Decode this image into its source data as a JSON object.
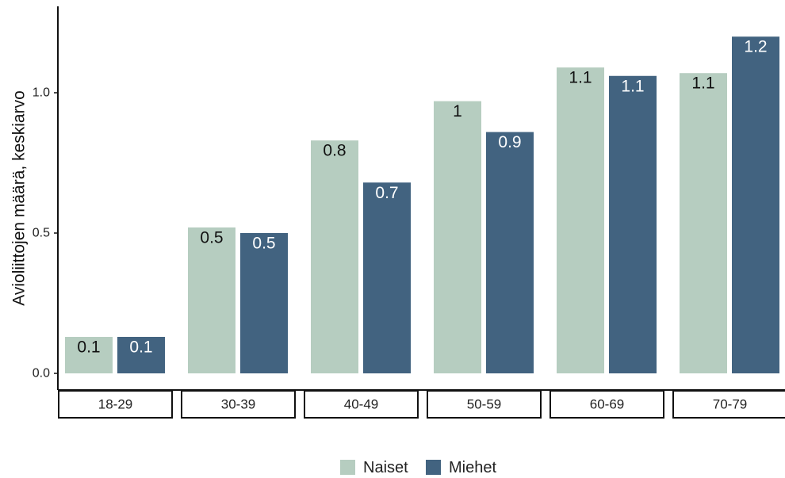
{
  "chart_data": {
    "type": "bar",
    "title": "",
    "xlabel": "",
    "ylabel": "Avioliittojen määrä, keskiarvo",
    "ylim": [
      0,
      1.25
    ],
    "yticks": [
      0.0,
      0.5,
      1.0
    ],
    "ytick_labels": [
      "0.0",
      "0.5",
      "1.0"
    ],
    "categories": [
      "18-29",
      "30-39",
      "40-49",
      "50-59",
      "60-69",
      "70-79"
    ],
    "series": [
      {
        "name": "Naiset",
        "color": "#b6cdc0",
        "label_color": "#111111",
        "values": [
          0.13,
          0.52,
          0.83,
          0.97,
          1.09,
          1.07
        ],
        "labels": [
          "0.1",
          "0.5",
          "0.8",
          "1",
          "1.1",
          "1.1"
        ]
      },
      {
        "name": "Miehet",
        "color": "#426380",
        "label_color": "#ffffff",
        "values": [
          0.13,
          0.5,
          0.68,
          0.86,
          1.06,
          1.2
        ],
        "labels": [
          "0.1",
          "0.5",
          "0.7",
          "0.9",
          "1.1",
          "1.2"
        ]
      }
    ],
    "legend_position": "bottom-center",
    "grid": false
  }
}
